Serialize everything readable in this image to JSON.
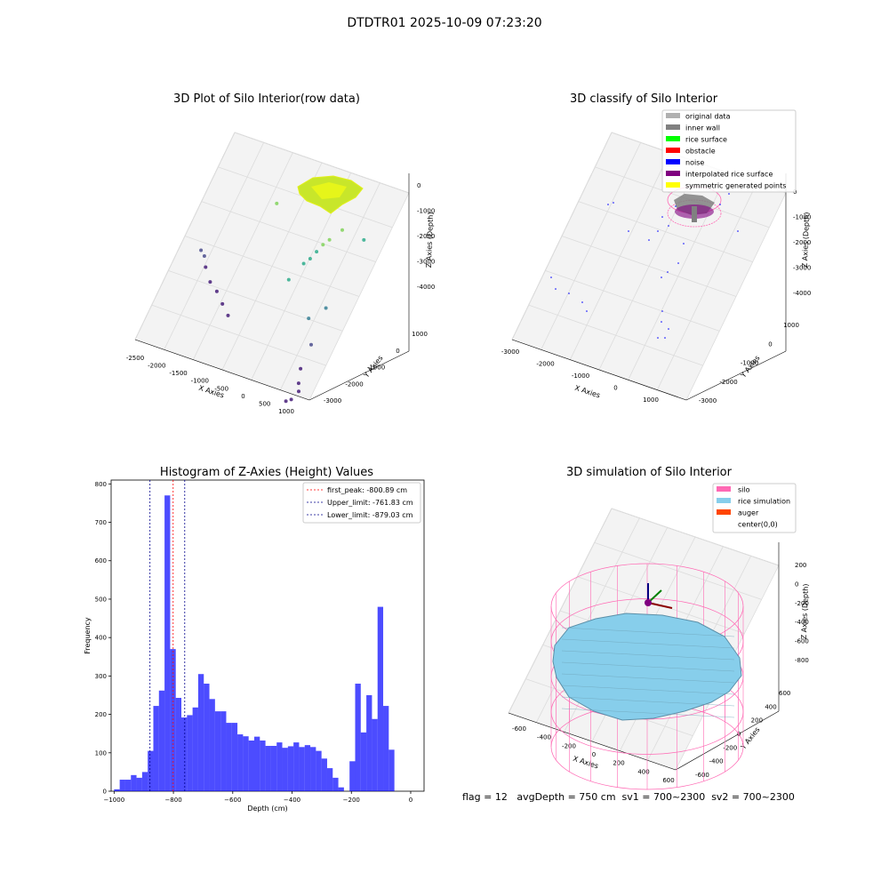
{
  "figure": {
    "title": "DTDTR01 2025-10-09 07:23:20",
    "footer": "flag = 12   avgDepth = 750 cm  sv1 = 700~2300  sv2 = 700~2300"
  },
  "colors": {
    "grid": "#dcdcdc",
    "pane": "#f2f2f2",
    "hist_bar": "#0000ff",
    "peak_line": "#ff0000",
    "limit_line": "#00008b",
    "silo": "#ff69b4",
    "rice": "#87ceeb",
    "auger": "#ff4500",
    "noise": "#0000ff",
    "inner_wall": "#808080",
    "original": "#b0b0b0",
    "rice_surface": "#00ff00",
    "obstacle": "#ff0000",
    "interpolated": "#800080",
    "symmetric": "#ffff00"
  },
  "chart_data": [
    {
      "type": "scatter",
      "title": "3D Plot of Silo Interior(row data)",
      "xlabel": "X Axies",
      "ylabel": "Y Axies",
      "zlabel": "Z Axies (Depth)",
      "xticks": [
        "-2500",
        "-2000",
        "-1500",
        "-1000",
        "-500",
        "0",
        "500",
        "1000"
      ],
      "yticks": [
        "-3000",
        "-2000",
        "-1000",
        "0",
        "1000"
      ],
      "zticks": [
        "0",
        "-1000",
        "-2000",
        "-3000",
        "-4000"
      ],
      "xlim": [
        -2700,
        1300
      ],
      "ylim": [
        -3400,
        1400
      ],
      "zlim": [
        -4500,
        200
      ],
      "colormap": "viridis by depth",
      "points": [
        {
          "x": -2500,
          "y": -300,
          "z": -3500
        },
        {
          "x": -2400,
          "y": -350,
          "z": -3600
        },
        {
          "x": -2300,
          "y": -500,
          "z": -3750
        },
        {
          "x": -2100,
          "y": -700,
          "z": -3900
        },
        {
          "x": -1900,
          "y": -800,
          "z": -4000
        },
        {
          "x": -1700,
          "y": -950,
          "z": -4150
        },
        {
          "x": -1500,
          "y": -1100,
          "z": -4250
        },
        {
          "x": 400,
          "y": -2300,
          "z": -4500
        },
        {
          "x": 500,
          "y": -2250,
          "z": -4450
        },
        {
          "x": 600,
          "y": -2100,
          "z": -4300
        },
        {
          "x": 550,
          "y": -2000,
          "z": -4150
        },
        {
          "x": 500,
          "y": -1800,
          "z": -3900
        },
        {
          "x": 600,
          "y": -1500,
          "z": -3300
        },
        {
          "x": 400,
          "y": -1200,
          "z": -2800
        },
        {
          "x": 700,
          "y": -1000,
          "z": -2500
        },
        {
          "x": -200,
          "y": -900,
          "z": -2000
        },
        {
          "x": -1000,
          "y": 200,
          "z": -1200
        },
        {
          "x": 0,
          "y": -600,
          "z": -1700
        },
        {
          "x": 100,
          "y": -500,
          "z": -1600
        },
        {
          "x": 200,
          "y": -400,
          "z": -1400
        },
        {
          "x": 300,
          "y": -300,
          "z": -1200
        },
        {
          "x": 400,
          "y": -200,
          "z": -1100
        },
        {
          "x": 600,
          "y": 0,
          "z": -900
        },
        {
          "x": 1000,
          "y": 200,
          "z": -1500
        }
      ]
    },
    {
      "type": "scatter",
      "title": "3D classify of Silo Interior",
      "xlabel": "X Axies",
      "ylabel": "Y Axies",
      "zlabel": "Z Axies (Depth)",
      "xticks": [
        "-3000",
        "-2000",
        "-1000",
        "0",
        "1000"
      ],
      "yticks": [
        "-3000",
        "-2000",
        "-1000",
        "0",
        "1000"
      ],
      "zticks": [
        "0",
        "-1000",
        "-2000",
        "-3000",
        "-4000"
      ],
      "xlim": [
        -3000,
        1500
      ],
      "ylim": [
        -3400,
        1400
      ],
      "zlim": [
        -4500,
        200
      ],
      "legend": [
        "original data",
        "inner wall",
        "rice surface",
        "obstacle",
        "noise",
        "interpolated rice surface",
        "symmetric generated points"
      ],
      "legend_loc": "upper right"
    },
    {
      "type": "bar",
      "title": "Histogram of Z-Axies (Height) Values",
      "xlabel": "Depth (cm)",
      "ylabel": "Frequency",
      "xlim": [
        -1010,
        45
      ],
      "ylim": [
        0,
        810
      ],
      "xticks": [
        -1000,
        -800,
        -600,
        -400,
        -200,
        0
      ],
      "yticks": [
        0,
        100,
        200,
        300,
        400,
        500,
        600,
        700,
        800
      ],
      "bin_width": 18.9,
      "bins_start": -1000,
      "values": [
        5,
        30,
        30,
        42,
        35,
        50,
        105,
        222,
        262,
        770,
        370,
        243,
        192,
        198,
        218,
        305,
        280,
        240,
        208,
        208,
        178,
        178,
        148,
        143,
        132,
        142,
        132,
        118,
        118,
        127,
        113,
        117,
        127,
        115,
        120,
        115,
        105,
        85,
        60,
        35,
        10,
        0,
        78,
        280,
        153,
        250,
        188,
        480,
        222,
        108
      ],
      "vlines": [
        {
          "label": "first_peak: -800.89 cm",
          "x": -800.89,
          "color": "peak_line"
        },
        {
          "label": "Upper_limit: -761.83 cm",
          "x": -761.83,
          "color": "limit_line"
        },
        {
          "label": "Lower_limit: -879.03 cm",
          "x": -879.03,
          "color": "limit_line"
        }
      ],
      "legend_loc": "upper right"
    },
    {
      "type": "surface",
      "title": "3D simulation of Silo Interior",
      "xlabel": "X Axies",
      "ylabel": "Y Axies",
      "zlabel": "Z Axies (Depth)",
      "xticks": [
        "-600",
        "-400",
        "-200",
        "0",
        "200",
        "400",
        "600"
      ],
      "yticks": [
        "-600",
        "-400",
        "-200",
        "0",
        "200",
        "400",
        "600"
      ],
      "zticks": [
        "200",
        "0",
        "-200",
        "-400",
        "-600",
        "-800"
      ],
      "legend": [
        "silo",
        "rice simulation",
        "auger",
        "center(0,0)"
      ],
      "legend_loc": "upper right"
    }
  ]
}
